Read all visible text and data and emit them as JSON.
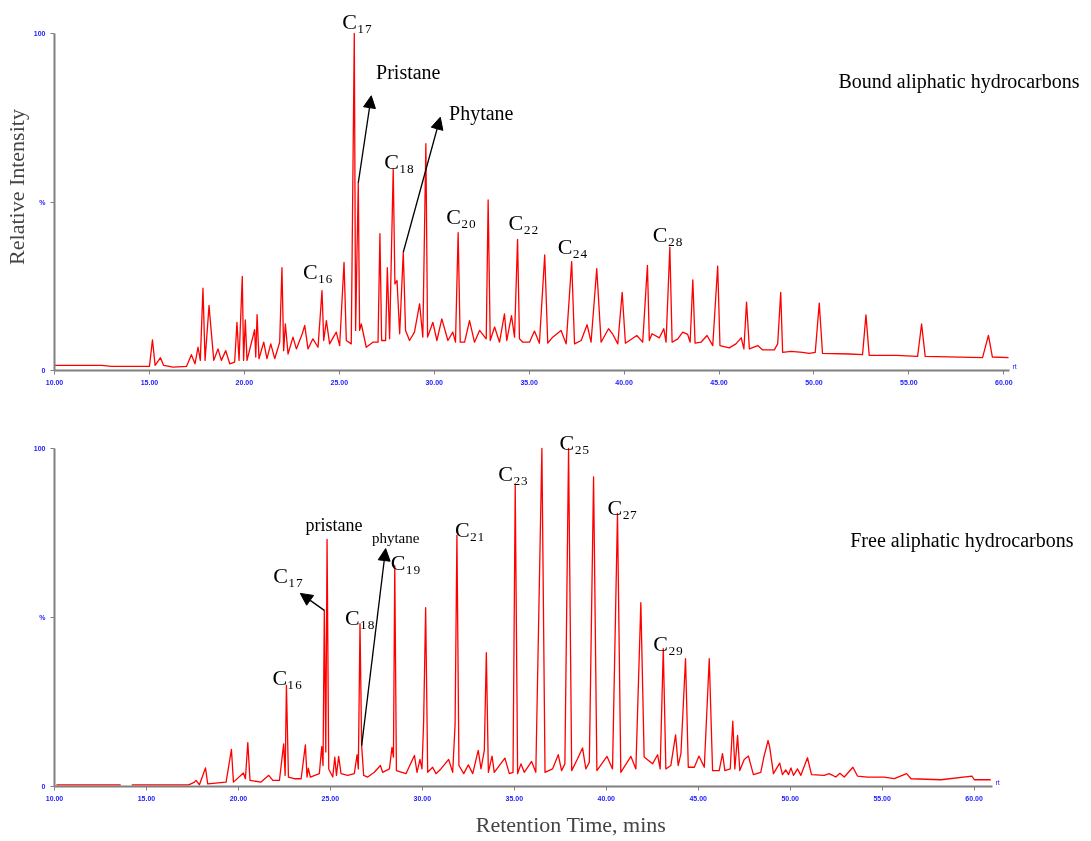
{
  "chart_data": [
    {
      "type": "line",
      "title": "Bound aliphatic hydrocarbons",
      "ylabel": "Relative Intensity",
      "xlim": [
        10,
        60.3
      ],
      "xticks": [
        {
          "value": 10,
          "label": "10.00"
        },
        {
          "value": 15,
          "label": "15.00"
        },
        {
          "value": 20,
          "label": "20.00"
        },
        {
          "value": 25,
          "label": "25.00"
        },
        {
          "value": 30,
          "label": "30.00"
        },
        {
          "value": 35,
          "label": "35.00"
        },
        {
          "value": 40,
          "label": "40.00"
        },
        {
          "value": 45,
          "label": "45.00"
        },
        {
          "value": 50,
          "label": "50.00"
        },
        {
          "value": 55,
          "label": "55.00"
        },
        {
          "value": 60,
          "label": "60.00"
        }
      ],
      "ylim": [
        0,
        100
      ],
      "yticks": [
        {
          "value": 0,
          "label": "0"
        },
        {
          "value": 50,
          "label": "%"
        },
        {
          "value": 100,
          "label": "100"
        }
      ],
      "series": [
        {
          "color": "#ff0000",
          "x": [
            10.0,
            12.5,
            13.0,
            15.0,
            15.16,
            15.3,
            15.58,
            15.75,
            16.25,
            16.95,
            17.21,
            17.4,
            17.56,
            17.68,
            17.82,
            17.93,
            18.14,
            18.25,
            18.39,
            18.61,
            18.79,
            19.02,
            19.23,
            19.49,
            19.61,
            19.72,
            19.89,
            19.96,
            20.05,
            20.14,
            20.54,
            20.6,
            20.67,
            20.77,
            21.02,
            21.19,
            21.39,
            21.6,
            21.86,
            21.98,
            22.07,
            22.16,
            22.3,
            22.56,
            22.74,
            23.05,
            23.18,
            23.35,
            23.61,
            23.88,
            24.09,
            24.18,
            24.32,
            24.49,
            24.84,
            25.02,
            25.25,
            25.37,
            25.63,
            25.79,
            25.86,
            26.0,
            26.07,
            26.16,
            26.42,
            26.77,
            27.04,
            27.14,
            27.23,
            27.44,
            27.53,
            27.65,
            27.84,
            27.93,
            28.04,
            28.18,
            28.37,
            28.49,
            28.7,
            28.96,
            29.23,
            29.4,
            29.56,
            29.65,
            29.93,
            30.14,
            30.4,
            30.72,
            30.98,
            31.12,
            31.26,
            31.37,
            31.6,
            31.86,
            32.12,
            32.39,
            32.74,
            32.84,
            32.95,
            33.18,
            33.44,
            33.7,
            33.82,
            34.07,
            34.23,
            34.39,
            34.49,
            34.67,
            35.02,
            35.28,
            35.54,
            35.82,
            35.98,
            36.24,
            36.68,
            36.95,
            37.24,
            37.39,
            37.74,
            38.05,
            38.26,
            38.56,
            38.79,
            39.18,
            39.41,
            39.67,
            39.9,
            40.07,
            40.67,
            40.98,
            41.23,
            41.33,
            41.47,
            41.86,
            42.09,
            42.21,
            42.41,
            42.53,
            42.83,
            43.09,
            43.35,
            43.48,
            43.62,
            43.74,
            44.05,
            44.37,
            44.67,
            44.93,
            45.05,
            45.54,
            45.89,
            46.17,
            46.31,
            46.45,
            46.6,
            47.04,
            47.3,
            47.91,
            48.09,
            48.25,
            48.35,
            48.79,
            49.4,
            49.75,
            50.07,
            50.28,
            50.45,
            51.86,
            52.56,
            52.74,
            52.91,
            54.32,
            55.46,
            55.67,
            55.86,
            58.88,
            59.19,
            59.4,
            60.25
          ],
          "values": [
            1.5,
            1.5,
            1.2,
            1.2,
            9.1,
            1.5,
            3.8,
            1.5,
            1.0,
            1.2,
            4.7,
            2.0,
            6.9,
            3.0,
            24.4,
            3.0,
            19.3,
            11.9,
            3.0,
            6.4,
            3.0,
            5.9,
            2.0,
            2.5,
            14.3,
            3.0,
            27.9,
            3.0,
            15.0,
            3.0,
            12.1,
            4.0,
            16.6,
            3.5,
            8.4,
            3.5,
            7.9,
            3.5,
            8.4,
            30.5,
            5.9,
            13.8,
            4.9,
            9.9,
            6.4,
            10.9,
            13.4,
            6.4,
            9.4,
            6.9,
            23.7,
            8.9,
            14.8,
            7.9,
            11.4,
            7.4,
            32.1,
            8.9,
            7.9,
            100,
            11.9,
            55.7,
            11.9,
            13.8,
            6.9,
            8.4,
            8.4,
            40.6,
            8.9,
            8.9,
            30.5,
            9.4,
            59.8,
            25.7,
            26.7,
            10.9,
            35.1,
            11.9,
            8.9,
            11.4,
            19.8,
            9.9,
            67.3,
            9.9,
            14.3,
            8.9,
            15.3,
            8.9,
            11.4,
            8.4,
            40.9,
            8.4,
            8.4,
            14.8,
            8.4,
            11.9,
            9.4,
            50.6,
            8.9,
            12.9,
            8.4,
            16.8,
            8.9,
            16.3,
            9.9,
            38.9,
            9.4,
            8.4,
            8.4,
            11.7,
            8.1,
            34.3,
            8.1,
            9.9,
            11.9,
            7.9,
            32.3,
            7.9,
            8.9,
            13.6,
            8.4,
            30.2,
            8.4,
            12.4,
            10.7,
            7.9,
            23.2,
            8.1,
            10.4,
            8.4,
            31.2,
            8.9,
            10.9,
            9.7,
            12.4,
            8.4,
            36.6,
            8.4,
            9.4,
            11.4,
            10.7,
            8.4,
            26.9,
            8.1,
            8.4,
            10.4,
            7.4,
            31.0,
            7.4,
            6.7,
            7.9,
            9.7,
            6.4,
            20.3,
            6.4,
            7.4,
            6.1,
            6.1,
            7.9,
            23.2,
            5.4,
            5.7,
            5.4,
            5.1,
            5.4,
            20.0,
            5.1,
            4.9,
            4.7,
            16.5,
            4.5,
            4.5,
            4.2,
            13.8,
            4.2,
            3.8,
            10.4,
            4.0,
            3.8
          ]
        }
      ],
      "annotations": [
        {
          "text": "C₁₇",
          "x": 25.79,
          "y": 100
        },
        {
          "text": "Pristane",
          "x": 26.0,
          "y": 55.7
        },
        {
          "text": "Phytane",
          "x": 28.37,
          "y": 35.1
        },
        {
          "text": "C₁₈",
          "x": 27.84,
          "y": 59.8
        },
        {
          "text": "C₁₆",
          "x": 24.09,
          "y": 23.7
        },
        {
          "text": "C₂₀",
          "x": 31.26,
          "y": 40.9
        },
        {
          "text": "C₂₂",
          "x": 34.39,
          "y": 38.9
        },
        {
          "text": "C₂₄",
          "x": 37.24,
          "y": 32.3
        },
        {
          "text": "C₂₈",
          "x": 42.41,
          "y": 36.6
        },
        "rt"
      ]
    },
    {
      "type": "line",
      "title": "Free aliphatic hydrocarbons",
      "xlabel": "Retention Time, mins",
      "xlim": [
        10,
        61.0
      ],
      "xticks": [
        {
          "value": 10,
          "label": "10.00"
        },
        {
          "value": 15,
          "label": "15.00"
        },
        {
          "value": 20,
          "label": "20.00"
        },
        {
          "value": 25,
          "label": "25.00"
        },
        {
          "value": 30,
          "label": "30.00"
        },
        {
          "value": 35,
          "label": "35.00"
        },
        {
          "value": 40,
          "label": "40.00"
        },
        {
          "value": 45,
          "label": "45.00"
        },
        {
          "value": 50,
          "label": "50.00"
        },
        {
          "value": 55,
          "label": "55.00"
        },
        {
          "value": 60,
          "label": "60.00"
        }
      ],
      "ylim": [
        0,
        100
      ],
      "yticks": [
        {
          "value": 0,
          "label": "0"
        },
        {
          "value": 50,
          "label": "%"
        },
        {
          "value": 100,
          "label": "100"
        }
      ],
      "series": [
        {
          "color": "#ff0000",
          "x": [
            10.1,
            13.6,
            13.9,
            14.2,
            17.3,
            17.61,
            17.7,
            17.88,
            18.21,
            18.33,
            19.33,
            19.62,
            19.73,
            20.27,
            20.38,
            20.51,
            20.63,
            21.23,
            21.65,
            21.87,
            22.23,
            22.46,
            22.54,
            22.61,
            22.72,
            23.04,
            23.41,
            23.64,
            23.73,
            23.8,
            23.91,
            24.4,
            24.53,
            24.6,
            24.67,
            24.75,
            24.82,
            24.91,
            25.13,
            25.24,
            25.33,
            25.45,
            25.58,
            25.94,
            26.3,
            26.45,
            26.52,
            26.61,
            26.7,
            26.81,
            27.03,
            27.39,
            27.72,
            27.84,
            28.21,
            28.35,
            28.43,
            28.5,
            28.59,
            29.11,
            29.57,
            29.71,
            29.87,
            29.98,
            30.07,
            30.18,
            30.29,
            30.56,
            30.74,
            31.01,
            31.43,
            31.65,
            31.78,
            31.88,
            31.99,
            32.25,
            32.5,
            32.74,
            32.92,
            33.04,
            33.19,
            33.37,
            33.48,
            33.59,
            33.79,
            33.91,
            34.49,
            34.73,
            34.93,
            35.05,
            35.18,
            35.36,
            35.54,
            35.94,
            36.17,
            36.5,
            36.67,
            37.08,
            37.39,
            37.57,
            37.75,
            37.95,
            38.12,
            38.44,
            38.71,
            38.89,
            39.08,
            39.31,
            39.49,
            40.04,
            40.34,
            40.61,
            40.79,
            41.34,
            41.61,
            41.88,
            42.06,
            42.52,
            42.79,
            42.93,
            43.1,
            43.24,
            43.51,
            43.77,
            43.91,
            44.06,
            44.31,
            44.46,
            44.79,
            45.04,
            45.33,
            45.6,
            45.78,
            46.14,
            46.32,
            46.45,
            46.74,
            46.88,
            46.99,
            47.14,
            47.26,
            47.5,
            47.73,
            48.0,
            48.4,
            48.58,
            48.8,
            48.89,
            49.09,
            49.43,
            49.58,
            49.76,
            49.91,
            50.04,
            50.18,
            50.4,
            50.58,
            50.94,
            51.16,
            51.85,
            52.12,
            52.48,
            52.7,
            52.94,
            53.41,
            53.66,
            54.21,
            55.11,
            55.66,
            56.33,
            56.57,
            58.2,
            59.88,
            60.01,
            60.9
          ],
          "values": [
            0.5,
            0.5,
            null,
            0.5,
            0.5,
            1.3,
            1.8,
            0.5,
            5.5,
            0.8,
            1.3,
            11.0,
            1.3,
            4.0,
            2.3,
            13.0,
            1.8,
            1.3,
            3.3,
            1.8,
            1.8,
            12.6,
            3.3,
            29.9,
            2.8,
            2.3,
            2.3,
            12.3,
            2.8,
            5.4,
            2.8,
            3.8,
            11.8,
            6.2,
            52.1,
            10.2,
            73.1,
            5.2,
            2.8,
            8.7,
            3.3,
            8.9,
            3.8,
            3.3,
            3.8,
            9.4,
            5.2,
            48.2,
            12.1,
            3.3,
            2.8,
            4.2,
            6.2,
            4.2,
            5.2,
            11.6,
            8.7,
            65.4,
            4.7,
            3.8,
            9.2,
            4.2,
            8.0,
            5.2,
            19.1,
            52.9,
            4.2,
            5.7,
            3.8,
            5.2,
            8.0,
            4.2,
            18.3,
            74.3,
            6.2,
            3.8,
            6.4,
            3.8,
            8.0,
            10.7,
            5.2,
            10.7,
            39.6,
            4.2,
            9.0,
            4.2,
            8.4,
            3.8,
            4.2,
            89.1,
            3.8,
            6.7,
            4.2,
            7.4,
            4.2,
            100,
            4.2,
            5.2,
            9.4,
            4.7,
            6.7,
            100,
            4.7,
            8.2,
            11.4,
            5.2,
            7.2,
            91.6,
            4.7,
            8.9,
            5.2,
            80.8,
            4.2,
            8.9,
            5.2,
            54.4,
            8.7,
            6.7,
            9.4,
            5.2,
            40.8,
            5.2,
            6.2,
            15.3,
            6.2,
            9.7,
            37.8,
            5.7,
            5.7,
            9.0,
            5.7,
            37.8,
            4.7,
            4.7,
            9.7,
            4.7,
            5.2,
            19.3,
            5.2,
            15.1,
            4.7,
            8.0,
            9.0,
            3.5,
            4.2,
            9.0,
            13.6,
            11.5,
            3.8,
            6.9,
            3.5,
            4.9,
            3.5,
            5.5,
            3.3,
            5.2,
            3.3,
            8.5,
            3.5,
            3.3,
            3.8,
            2.8,
            3.9,
            2.8,
            5.7,
            3.1,
            2.8,
            2.8,
            2.3,
            3.8,
            2.3,
            2.0,
            3.1,
            2.0,
            2.0
          ]
        }
      ],
      "annotations": [
        {
          "text": "C₁₆",
          "x": 22.61,
          "y": 29.9
        },
        {
          "text": "C₁₇",
          "x": 24.67,
          "y": 52.1
        },
        {
          "text": "pristane",
          "x": 24.82,
          "y": 73.1
        },
        {
          "text": "phytane",
          "x": 26.7,
          "y": 12.1
        },
        {
          "text": "C₁₈",
          "x": 26.61,
          "y": 48.2
        },
        {
          "text": "C₁₉",
          "x": 28.5,
          "y": 65.4
        },
        {
          "text": "C₂₁",
          "x": 31.88,
          "y": 74.3
        },
        {
          "text": "C₂₃",
          "x": 35.05,
          "y": 89.1
        },
        {
          "text": "C₂₅",
          "x": 37.95,
          "y": 100
        },
        {
          "text": "C₂₇",
          "x": 40.61,
          "y": 80.8
        },
        {
          "text": "C₂₉",
          "x": 43.1,
          "y": 40.8
        },
        "rt"
      ]
    }
  ]
}
